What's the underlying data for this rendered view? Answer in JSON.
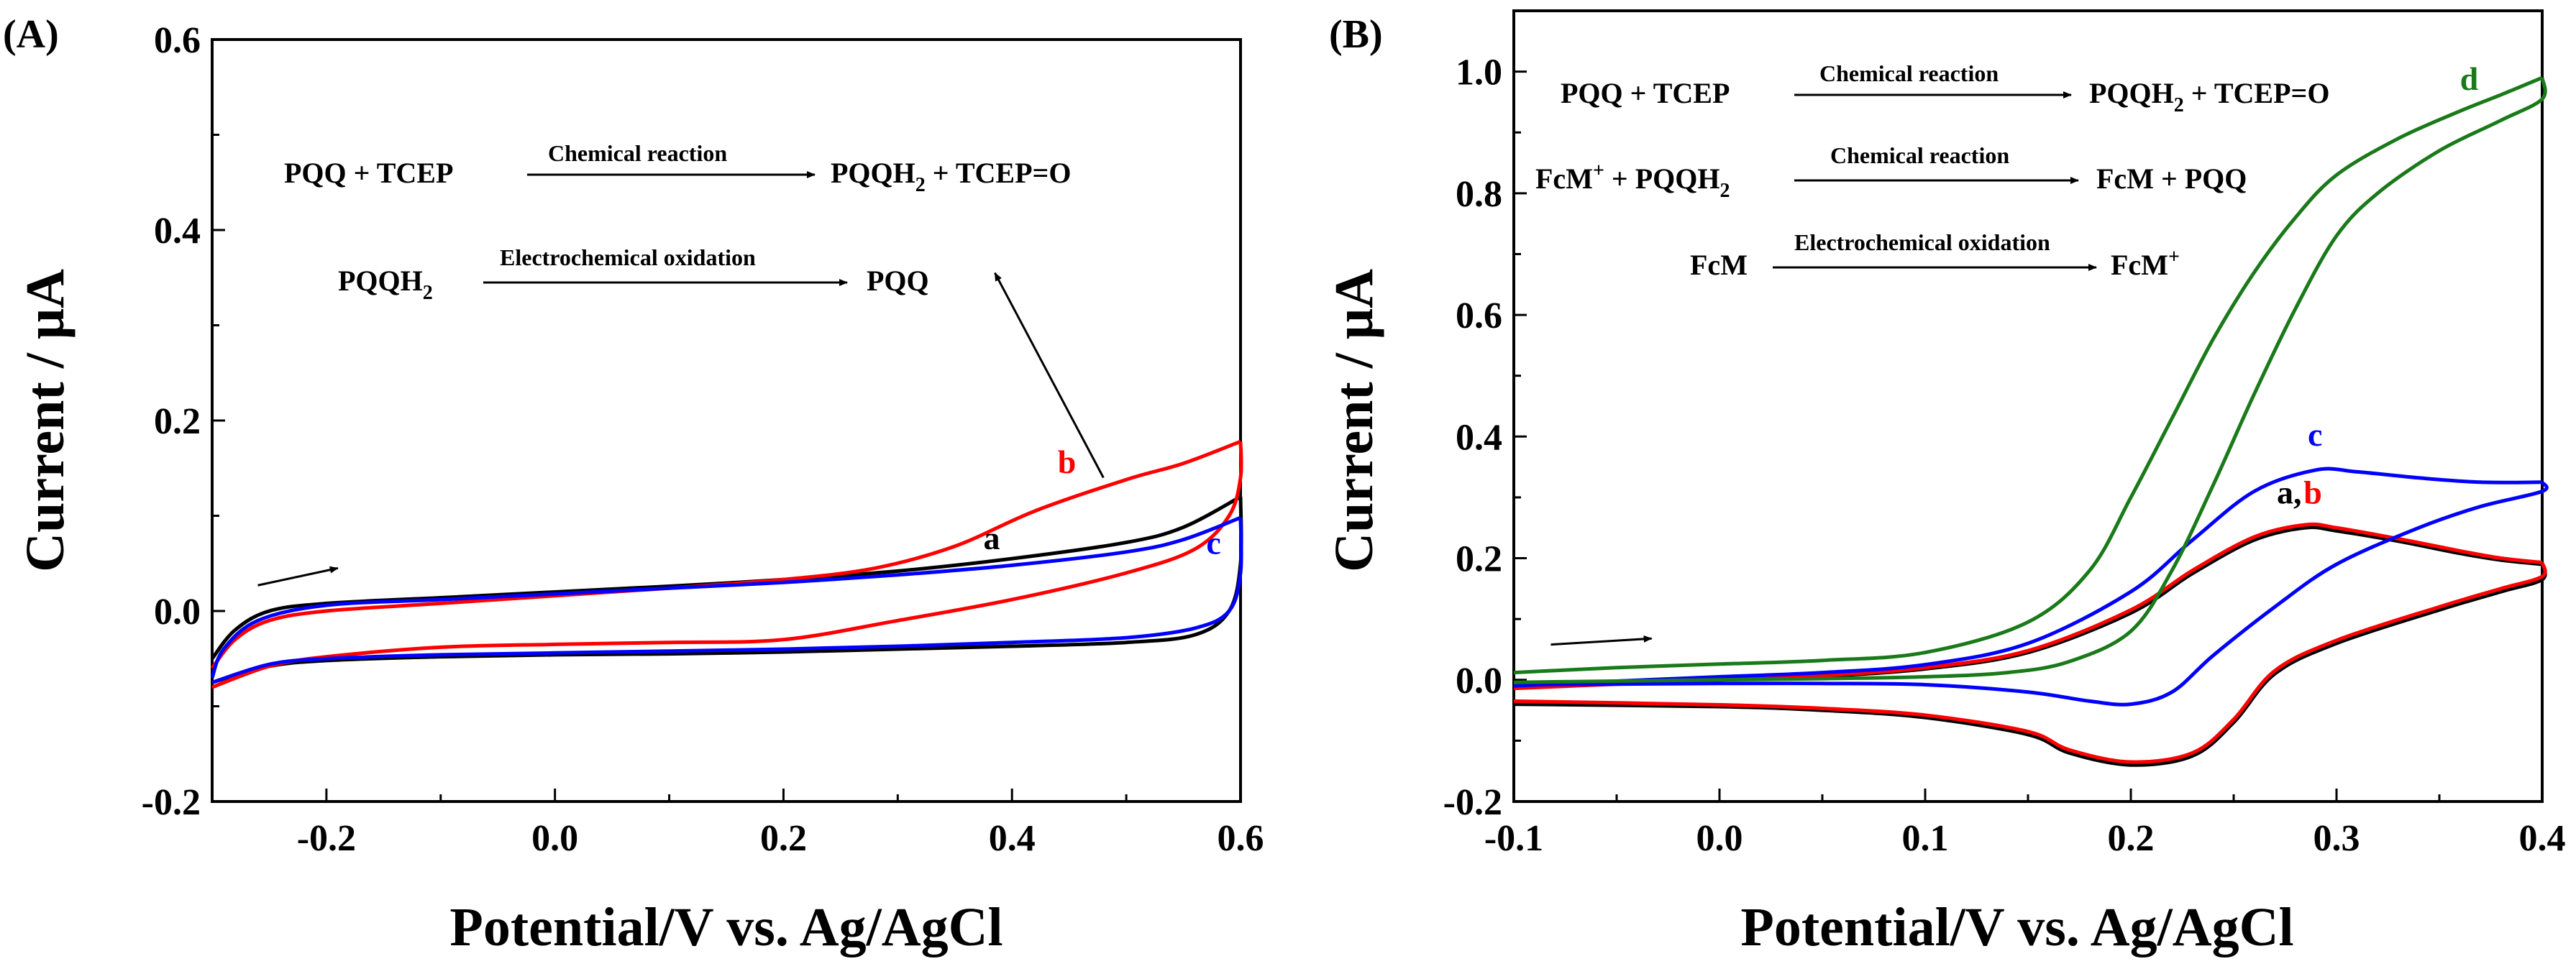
{
  "chart_data": [
    {
      "panel": "(A)",
      "type": "line",
      "xlabel": "Potential/V vs. Ag/AgCl",
      "ylabel": "Current / μA",
      "xlim": [
        -0.3,
        0.6
      ],
      "ylim": [
        -0.2,
        0.6
      ],
      "xticks": [
        -0.2,
        0.0,
        0.2,
        0.4,
        0.6
      ],
      "xtick_labels": [
        "-0.2",
        "0.0",
        "0.2",
        "0.4",
        "0.6"
      ],
      "yticks": [
        -0.2,
        0.0,
        0.2,
        0.4,
        0.6
      ],
      "ytick_labels": [
        "-0.2",
        "0.0",
        "0.2",
        "0.4",
        "0.6"
      ],
      "series": [
        {
          "name": "a",
          "color": "#000000",
          "forward": [
            [
              -0.3,
              -0.05
            ],
            [
              -0.28,
              -0.02
            ],
            [
              -0.25,
              0.0
            ],
            [
              -0.2,
              0.008
            ],
            [
              -0.1,
              0.014
            ],
            [
              0.0,
              0.02
            ],
            [
              0.1,
              0.026
            ],
            [
              0.2,
              0.033
            ],
            [
              0.3,
              0.042
            ],
            [
              0.4,
              0.055
            ],
            [
              0.5,
              0.072
            ],
            [
              0.55,
              0.088
            ],
            [
              0.6,
              0.12
            ]
          ],
          "reverse": [
            [
              0.6,
              0.12
            ],
            [
              0.6,
              0.05
            ],
            [
              0.59,
              0.0
            ],
            [
              0.56,
              -0.025
            ],
            [
              0.5,
              -0.033
            ],
            [
              0.4,
              -0.037
            ],
            [
              0.3,
              -0.04
            ],
            [
              0.2,
              -0.043
            ],
            [
              0.1,
              -0.045
            ],
            [
              0.0,
              -0.046
            ],
            [
              -0.1,
              -0.048
            ],
            [
              -0.2,
              -0.052
            ],
            [
              -0.25,
              -0.058
            ],
            [
              -0.3,
              -0.075
            ]
          ]
        },
        {
          "name": "b",
          "color": "#ff0000",
          "forward": [
            [
              -0.3,
              -0.06
            ],
            [
              -0.28,
              -0.03
            ],
            [
              -0.25,
              -0.01
            ],
            [
              -0.2,
              0.0
            ],
            [
              -0.1,
              0.008
            ],
            [
              0.0,
              0.016
            ],
            [
              0.1,
              0.024
            ],
            [
              0.2,
              0.033
            ],
            [
              0.28,
              0.045
            ],
            [
              0.35,
              0.068
            ],
            [
              0.42,
              0.105
            ],
            [
              0.5,
              0.138
            ],
            [
              0.55,
              0.155
            ],
            [
              0.6,
              0.178
            ]
          ],
          "reverse": [
            [
              0.6,
              0.178
            ],
            [
              0.6,
              0.14
            ],
            [
              0.59,
              0.1
            ],
            [
              0.56,
              0.065
            ],
            [
              0.5,
              0.04
            ],
            [
              0.4,
              0.012
            ],
            [
              0.3,
              -0.01
            ],
            [
              0.2,
              -0.03
            ],
            [
              0.1,
              -0.033
            ],
            [
              0.0,
              -0.035
            ],
            [
              -0.1,
              -0.038
            ],
            [
              -0.2,
              -0.048
            ],
            [
              -0.25,
              -0.058
            ],
            [
              -0.3,
              -0.08
            ]
          ]
        },
        {
          "name": "c",
          "color": "#0000ff",
          "forward": [
            [
              -0.3,
              -0.07
            ],
            [
              -0.29,
              -0.04
            ],
            [
              -0.26,
              -0.01
            ],
            [
              -0.2,
              0.006
            ],
            [
              -0.1,
              0.012
            ],
            [
              0.0,
              0.018
            ],
            [
              0.1,
              0.024
            ],
            [
              0.2,
              0.03
            ],
            [
              0.3,
              0.038
            ],
            [
              0.4,
              0.048
            ],
            [
              0.5,
              0.062
            ],
            [
              0.55,
              0.075
            ],
            [
              0.6,
              0.098
            ]
          ],
          "reverse": [
            [
              0.6,
              0.098
            ],
            [
              0.6,
              0.04
            ],
            [
              0.59,
              0.0
            ],
            [
              0.56,
              -0.018
            ],
            [
              0.5,
              -0.028
            ],
            [
              0.4,
              -0.033
            ],
            [
              0.3,
              -0.037
            ],
            [
              0.2,
              -0.04
            ],
            [
              0.1,
              -0.042
            ],
            [
              0.0,
              -0.044
            ],
            [
              -0.1,
              -0.046
            ],
            [
              -0.2,
              -0.05
            ],
            [
              -0.25,
              -0.056
            ],
            [
              -0.3,
              -0.075
            ]
          ]
        }
      ],
      "curve_labels": [
        {
          "text": "a",
          "color": "#000000",
          "x": 0.375,
          "y": 0.065
        },
        {
          "text": "b",
          "color": "#ff0000",
          "x": 0.44,
          "y": 0.145
        },
        {
          "text": "c",
          "color": "#0000ff",
          "x": 0.57,
          "y": 0.06
        }
      ],
      "arrows": [
        {
          "from": [
            -0.26,
            0.027
          ],
          "to": [
            -0.19,
            0.045
          ],
          "name": "scan-direction-arrow"
        },
        {
          "from": [
            0.48,
            0.14
          ],
          "to": [
            0.385,
            0.355
          ],
          "name": "trend-arrow"
        }
      ],
      "equations": [
        {
          "left": "PQQ  +  TCEP",
          "label": "Chemical reaction",
          "right": "PQQH",
          "right_sub": "2",
          "right_tail": "  +  TCEP=O"
        },
        {
          "left": "PQQH",
          "left_sub": "2",
          "label": "Electrochemical oxidation",
          "right": "PQQ"
        }
      ]
    },
    {
      "panel": "(B)",
      "type": "line",
      "xlabel": "Potential/V vs. Ag/AgCl",
      "ylabel": "Current / μA",
      "xlim": [
        -0.1,
        0.4
      ],
      "ylim": [
        -0.2,
        1.1
      ],
      "xticks": [
        -0.1,
        0.0,
        0.1,
        0.2,
        0.3,
        0.4
      ],
      "xtick_labels": [
        "-0.1",
        "0.0",
        "0.1",
        "0.2",
        "0.3",
        "0.4"
      ],
      "yticks": [
        -0.2,
        0.0,
        0.2,
        0.4,
        0.6,
        0.8,
        1.0
      ],
      "ytick_labels": [
        "-0.2",
        "0.0",
        "0.2",
        "0.4",
        "0.6",
        "0.8",
        "1.0"
      ],
      "series": [
        {
          "name": "a",
          "color": "#000000",
          "forward": [
            [
              -0.1,
              -0.012
            ],
            [
              -0.05,
              -0.006
            ],
            [
              0.0,
              0.0
            ],
            [
              0.05,
              0.006
            ],
            [
              0.1,
              0.018
            ],
            [
              0.15,
              0.045
            ],
            [
              0.2,
              0.11
            ],
            [
              0.23,
              0.175
            ],
            [
              0.26,
              0.23
            ],
            [
              0.285,
              0.25
            ],
            [
              0.3,
              0.245
            ],
            [
              0.33,
              0.228
            ],
            [
              0.36,
              0.208
            ],
            [
              0.38,
              0.197
            ],
            [
              0.4,
              0.19
            ]
          ],
          "reverse": [
            [
              0.4,
              0.19
            ],
            [
              0.4,
              0.165
            ],
            [
              0.38,
              0.145
            ],
            [
              0.35,
              0.115
            ],
            [
              0.3,
              0.06
            ],
            [
              0.27,
              0.01
            ],
            [
              0.25,
              -0.07
            ],
            [
              0.23,
              -0.125
            ],
            [
              0.2,
              -0.14
            ],
            [
              0.17,
              -0.12
            ],
            [
              0.15,
              -0.09
            ],
            [
              0.1,
              -0.062
            ],
            [
              0.05,
              -0.05
            ],
            [
              0.0,
              -0.044
            ],
            [
              -0.1,
              -0.04
            ]
          ]
        },
        {
          "name": "b",
          "color": "#ff0000",
          "forward": [
            [
              -0.1,
              -0.014
            ],
            [
              -0.05,
              -0.007
            ],
            [
              0.0,
              0.0
            ],
            [
              0.05,
              0.007
            ],
            [
              0.1,
              0.02
            ],
            [
              0.15,
              0.048
            ],
            [
              0.2,
              0.115
            ],
            [
              0.23,
              0.18
            ],
            [
              0.26,
              0.235
            ],
            [
              0.285,
              0.255
            ],
            [
              0.3,
              0.25
            ],
            [
              0.33,
              0.232
            ],
            [
              0.36,
              0.212
            ],
            [
              0.38,
              0.2
            ],
            [
              0.4,
              0.193
            ]
          ],
          "reverse": [
            [
              0.4,
              0.193
            ],
            [
              0.4,
              0.17
            ],
            [
              0.38,
              0.15
            ],
            [
              0.35,
              0.12
            ],
            [
              0.3,
              0.065
            ],
            [
              0.27,
              0.015
            ],
            [
              0.25,
              -0.065
            ],
            [
              0.23,
              -0.12
            ],
            [
              0.2,
              -0.135
            ],
            [
              0.17,
              -0.115
            ],
            [
              0.15,
              -0.085
            ],
            [
              0.1,
              -0.058
            ],
            [
              0.05,
              -0.047
            ],
            [
              0.0,
              -0.041
            ],
            [
              -0.1,
              -0.035
            ]
          ]
        },
        {
          "name": "c",
          "color": "#0000ff",
          "forward": [
            [
              -0.1,
              -0.01
            ],
            [
              -0.05,
              -0.002
            ],
            [
              0.0,
              0.005
            ],
            [
              0.05,
              0.012
            ],
            [
              0.1,
              0.025
            ],
            [
              0.15,
              0.06
            ],
            [
              0.2,
              0.145
            ],
            [
              0.23,
              0.23
            ],
            [
              0.26,
              0.31
            ],
            [
              0.29,
              0.345
            ],
            [
              0.31,
              0.342
            ],
            [
              0.34,
              0.332
            ],
            [
              0.37,
              0.325
            ],
            [
              0.4,
              0.325
            ]
          ],
          "reverse": [
            [
              0.4,
              0.325
            ],
            [
              0.4,
              0.31
            ],
            [
              0.37,
              0.285
            ],
            [
              0.34,
              0.25
            ],
            [
              0.3,
              0.19
            ],
            [
              0.27,
              0.12
            ],
            [
              0.24,
              0.04
            ],
            [
              0.22,
              -0.02
            ],
            [
              0.2,
              -0.04
            ],
            [
              0.18,
              -0.035
            ],
            [
              0.15,
              -0.02
            ],
            [
              0.1,
              -0.008
            ],
            [
              0.05,
              -0.006
            ],
            [
              0.0,
              -0.006
            ],
            [
              -0.1,
              -0.008
            ]
          ]
        },
        {
          "name": "d",
          "color": "#1a7a1a",
          "forward": [
            [
              -0.1,
              0.012
            ],
            [
              -0.05,
              0.02
            ],
            [
              0.0,
              0.026
            ],
            [
              0.05,
              0.032
            ],
            [
              0.1,
              0.045
            ],
            [
              0.15,
              0.095
            ],
            [
              0.18,
              0.18
            ],
            [
              0.2,
              0.3
            ],
            [
              0.22,
              0.43
            ],
            [
              0.24,
              0.56
            ],
            [
              0.26,
              0.67
            ],
            [
              0.28,
              0.76
            ],
            [
              0.3,
              0.83
            ],
            [
              0.33,
              0.89
            ],
            [
              0.36,
              0.935
            ],
            [
              0.38,
              0.962
            ],
            [
              0.4,
              0.99
            ]
          ],
          "reverse": [
            [
              0.4,
              0.99
            ],
            [
              0.4,
              0.955
            ],
            [
              0.38,
              0.92
            ],
            [
              0.35,
              0.87
            ],
            [
              0.32,
              0.8
            ],
            [
              0.3,
              0.73
            ],
            [
              0.28,
              0.61
            ],
            [
              0.26,
              0.47
            ],
            [
              0.24,
              0.32
            ],
            [
              0.22,
              0.18
            ],
            [
              0.2,
              0.08
            ],
            [
              0.17,
              0.03
            ],
            [
              0.14,
              0.012
            ],
            [
              0.1,
              0.005
            ],
            [
              0.05,
              0.002
            ],
            [
              0.0,
              0.0
            ],
            [
              -0.05,
              -0.002
            ],
            [
              -0.1,
              -0.004
            ]
          ]
        }
      ],
      "curve_labels": [
        {
          "text": "d",
          "color": "#1a7a1a",
          "x": 0.36,
          "y": 0.97
        },
        {
          "text": "c",
          "color": "#0000ff",
          "x": 0.286,
          "y": 0.385
        },
        {
          "text": "a,",
          "color": "#000000",
          "x": 0.271,
          "y": 0.29
        },
        {
          "text": "b",
          "color": "#ff0000",
          "x": 0.284,
          "y": 0.29
        }
      ],
      "arrows": [
        {
          "from": [
            -0.082,
            0.058
          ],
          "to": [
            -0.033,
            0.068
          ],
          "name": "scan-direction-arrow"
        }
      ],
      "equations": [
        {
          "left": "PQQ  +  TCEP",
          "label": "Chemical reaction",
          "right": "PQQH",
          "right_sub": "2",
          "right_tail": "  +  TCEP=O"
        },
        {
          "left": "FcM",
          "left_sup": "+",
          "left_tail": " + PQQH",
          "left_sub2": "2",
          "label": "Chemical reaction",
          "right": "FcM   +  PQQ"
        },
        {
          "left": "FcM",
          "label": "Electrochemical oxidation",
          "right": "FcM",
          "right_sup": "+"
        }
      ]
    }
  ]
}
